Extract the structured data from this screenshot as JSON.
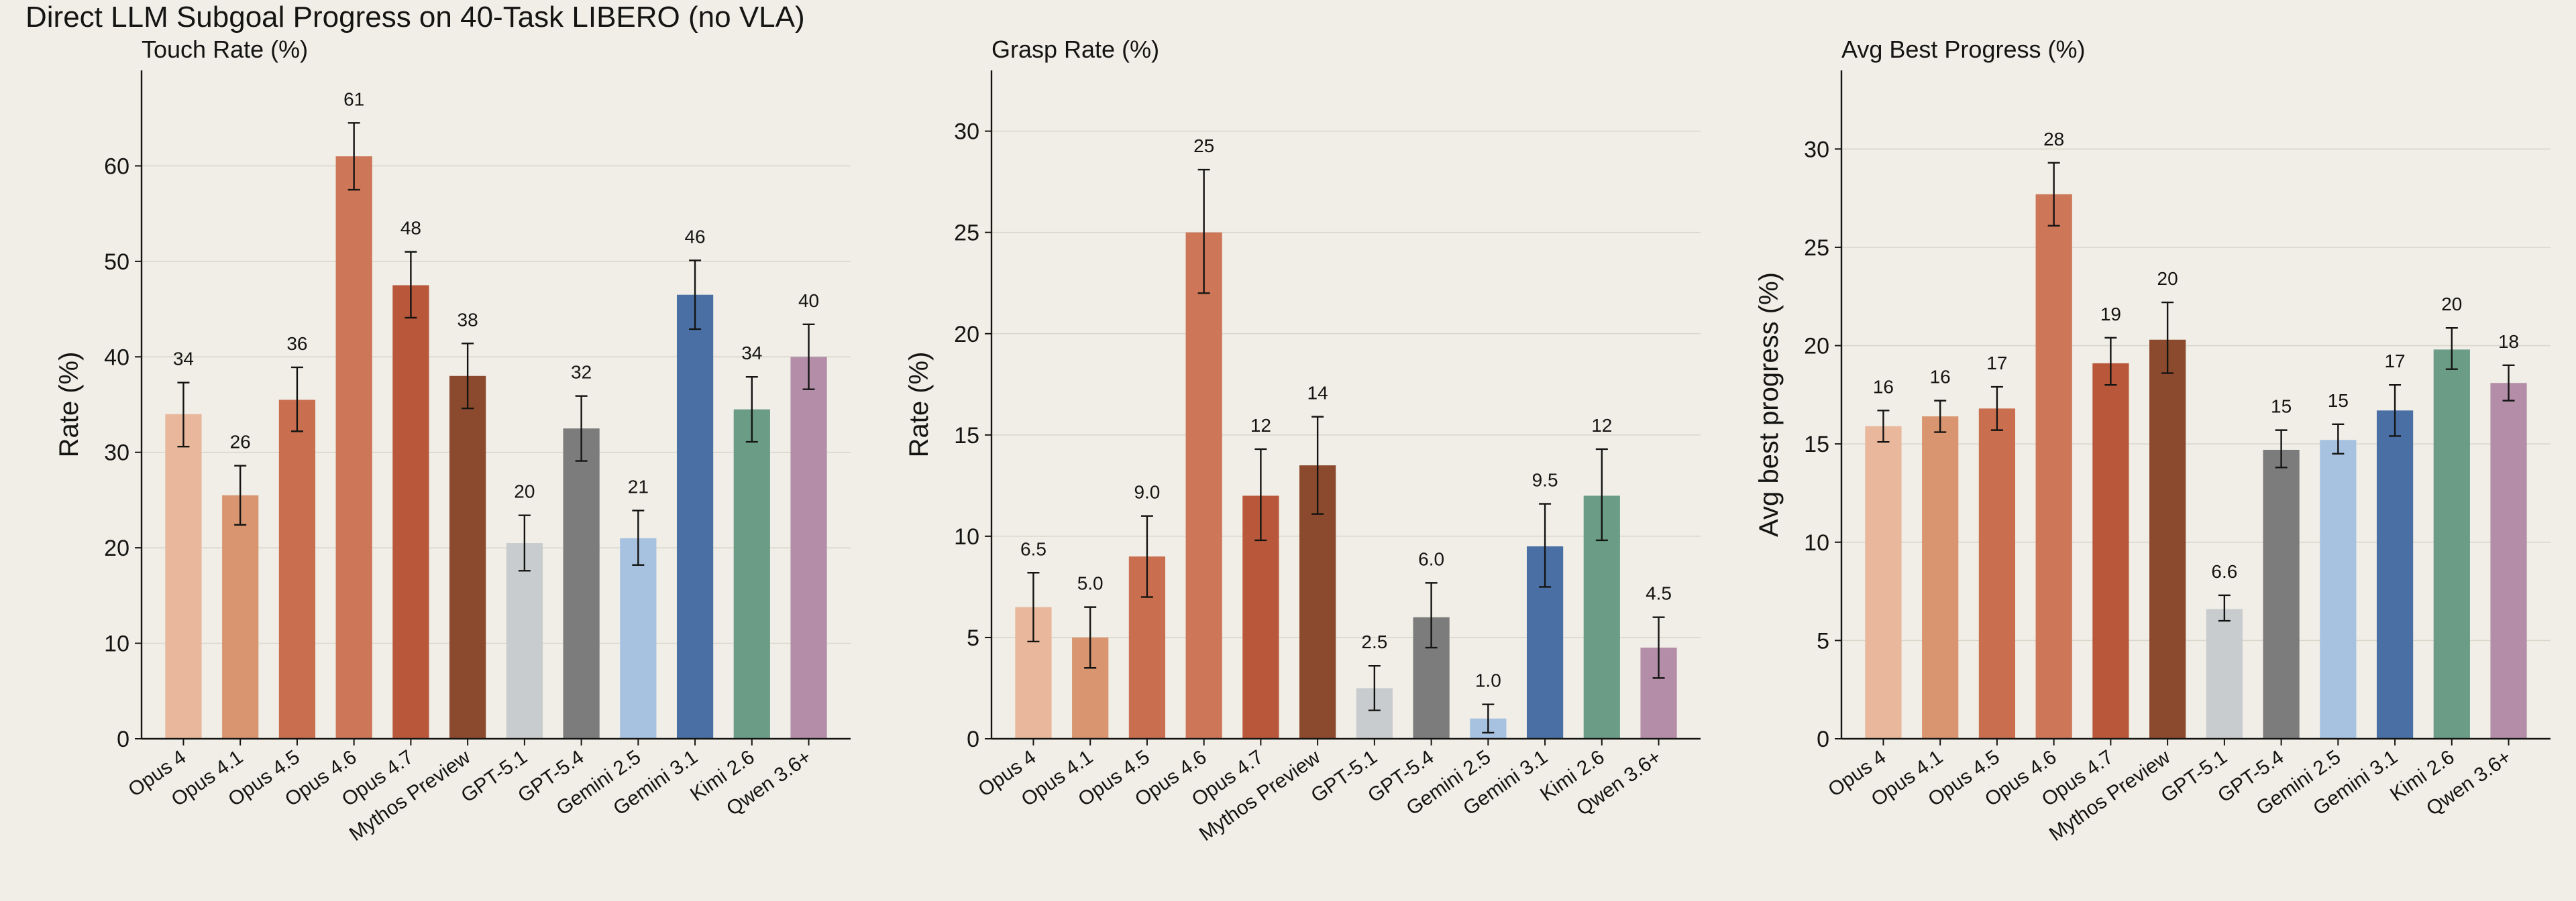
{
  "figure": {
    "title": "Direct LLM Subgoal Progress on 40-Task LIBERO (no VLA)"
  },
  "chart_data": [
    {
      "type": "bar",
      "title": "Touch Rate (%)",
      "xlabel": "",
      "ylabel": "Rate (%)",
      "ylim": [
        0,
        70
      ],
      "yticks": [
        0,
        10,
        20,
        30,
        40,
        50,
        60
      ],
      "grid": true,
      "categories": [
        "Opus 4",
        "Opus 4.1",
        "Opus 4.5",
        "Opus 4.6",
        "Opus 4.7",
        "Mythos Preview",
        "GPT-5.1",
        "GPT-5.4",
        "Gemini 2.5",
        "Gemini 3.1",
        "Kimi 2.6",
        "Qwen 3.6+"
      ],
      "values": [
        34,
        25.5,
        35.5,
        61,
        47.5,
        38,
        20.5,
        32.5,
        21,
        46.5,
        34.5,
        40
      ],
      "error_low": [
        30.6,
        22.4,
        32.2,
        57.5,
        44.1,
        34.6,
        17.6,
        29.1,
        18.2,
        42.9,
        31.1,
        36.6
      ],
      "error_high": [
        37.3,
        28.6,
        38.9,
        64.5,
        51.0,
        41.4,
        23.4,
        35.9,
        23.9,
        50.1,
        37.9,
        43.4
      ],
      "value_labels": [
        "34",
        "26",
        "36",
        "61",
        "48",
        "38",
        "20",
        "32",
        "21",
        "46",
        "34",
        "40"
      ],
      "colors": [
        "#e8b79c",
        "#d8956f",
        "#c96f4f",
        "#cd7658",
        "#b8573a",
        "#8b4a2e",
        "#c9ccce",
        "#7c7c7c",
        "#a7c2e0",
        "#4a6fa5",
        "#6a9c86",
        "#b48ea8"
      ]
    },
    {
      "type": "bar",
      "title": "Grasp Rate (%)",
      "xlabel": "",
      "ylabel": "Rate (%)",
      "ylim": [
        0,
        33
      ],
      "yticks": [
        0,
        5,
        10,
        15,
        20,
        25,
        30
      ],
      "grid": true,
      "categories": [
        "Opus 4",
        "Opus 4.1",
        "Opus 4.5",
        "Opus 4.6",
        "Opus 4.7",
        "Mythos Preview",
        "GPT-5.1",
        "GPT-5.4",
        "Gemini 2.5",
        "Gemini 3.1",
        "Kimi 2.6",
        "Qwen 3.6+"
      ],
      "values": [
        6.5,
        5.0,
        9.0,
        25,
        12,
        13.5,
        2.5,
        6.0,
        1.0,
        9.5,
        12,
        4.5
      ],
      "error_low": [
        4.8,
        3.5,
        7.0,
        22.0,
        9.8,
        11.1,
        1.4,
        4.5,
        0.3,
        7.5,
        9.8,
        3.0
      ],
      "error_high": [
        8.2,
        6.5,
        11.0,
        28.1,
        14.3,
        15.9,
        3.6,
        7.7,
        1.7,
        11.6,
        14.3,
        6.0
      ],
      "value_labels": [
        "6.5",
        "5.0",
        "9.0",
        "25",
        "12",
        "14",
        "2.5",
        "6.0",
        "1.0",
        "9.5",
        "12",
        "4.5"
      ],
      "colors": [
        "#e8b79c",
        "#d8956f",
        "#c96f4f",
        "#cd7658",
        "#b8573a",
        "#8b4a2e",
        "#c9ccce",
        "#7c7c7c",
        "#a7c2e0",
        "#4a6fa5",
        "#6a9c86",
        "#b48ea8"
      ]
    },
    {
      "type": "bar",
      "title": "Avg Best Progress (%)",
      "xlabel": "",
      "ylabel": "Avg best progress (%)",
      "ylim": [
        0,
        34
      ],
      "yticks": [
        0,
        5,
        10,
        15,
        20,
        25,
        30
      ],
      "grid": true,
      "categories": [
        "Opus 4",
        "Opus 4.1",
        "Opus 4.5",
        "Opus 4.6",
        "Opus 4.7",
        "Mythos Preview",
        "GPT-5.1",
        "GPT-5.4",
        "Gemini 2.5",
        "Gemini 3.1",
        "Kimi 2.6",
        "Qwen 3.6+"
      ],
      "values": [
        15.9,
        16.4,
        16.8,
        27.7,
        19.1,
        20.3,
        6.6,
        14.7,
        15.2,
        16.7,
        19.8,
        18.1
      ],
      "error_low": [
        15.1,
        15.6,
        15.7,
        26.1,
        18.0,
        18.6,
        6.0,
        13.8,
        14.5,
        15.4,
        18.8,
        17.2
      ],
      "error_high": [
        16.7,
        17.2,
        17.9,
        29.3,
        20.4,
        22.2,
        7.3,
        15.7,
        16.0,
        18.0,
        20.9,
        19.0
      ],
      "value_labels": [
        "16",
        "16",
        "17",
        "28",
        "19",
        "20",
        "6.6",
        "15",
        "15",
        "17",
        "20",
        "18"
      ],
      "colors": [
        "#e8b79c",
        "#d8956f",
        "#c96f4f",
        "#cd7658",
        "#b8573a",
        "#8b4a2e",
        "#c9ccce",
        "#7c7c7c",
        "#a7c2e0",
        "#4a6fa5",
        "#6a9c86",
        "#b48ea8"
      ]
    }
  ]
}
